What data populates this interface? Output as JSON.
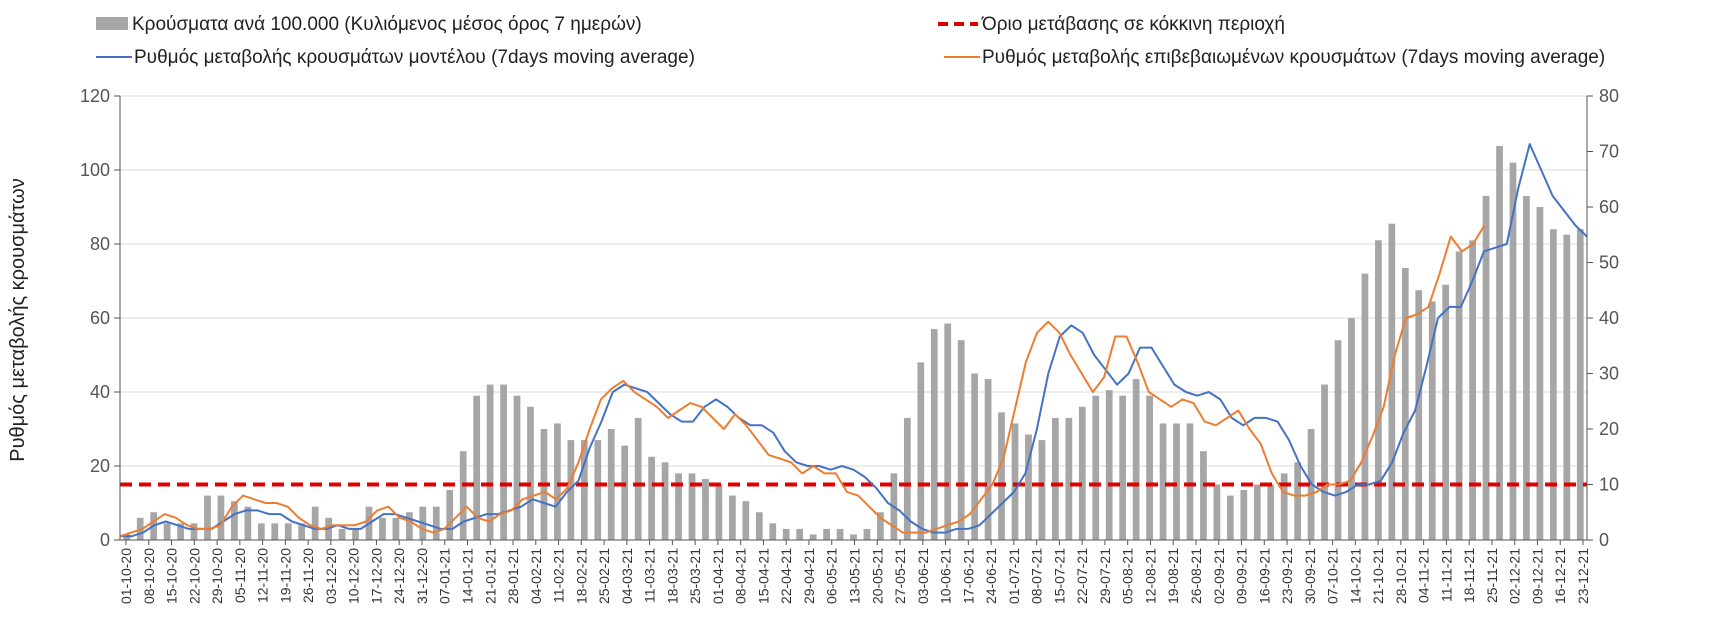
{
  "chart_data": {
    "type": "bar+line",
    "title": "",
    "ylabel": "Ρυθμός μεταβολής κρουσμάτων",
    "ylim": [
      0,
      120
    ],
    "y_ticks": [
      "0",
      "20",
      "40",
      "60",
      "80",
      "100",
      "120"
    ],
    "y2lim": [
      0,
      80
    ],
    "y2_ticks": [
      "0",
      "10",
      "20",
      "30",
      "40",
      "50",
      "60",
      "70",
      "80"
    ],
    "grid": "horizontal",
    "legend_position": "top",
    "legend": {
      "bars": "Κρούσματα ανά 100.000 (Κυλιόμενος μέσος όρος 7 ημερών)",
      "threshold": "Όριο μετάβασης σε κόκκινη περιοχή",
      "model": "Ρυθμός μεταβολής κρουσμάτων μοντέλου (7days moving average)",
      "confirmed": "Ρυθμός μεταβολής επιβεβαιωμένων κρουσμάτων (7days moving average)"
    },
    "colors": {
      "bars": "#a6a6a6",
      "threshold": "#e00000",
      "model": "#4472c4",
      "confirmed": "#ed7d31",
      "grid": "#d9d9d9",
      "axis": "#555555"
    },
    "x_labels": [
      "01-10-20",
      "08-10-20",
      "15-10-20",
      "22-10-20",
      "29-10-20",
      "05-11-20",
      "12-11-20",
      "19-11-20",
      "26-11-20",
      "03-12-20",
      "10-12-20",
      "17-12-20",
      "24-12-20",
      "31-12-20",
      "07-01-21",
      "14-01-21",
      "21-01-21",
      "28-01-21",
      "04-02-21",
      "11-02-21",
      "18-02-21",
      "25-02-21",
      "04-03-21",
      "11-03-21",
      "18-03-21",
      "25-03-21",
      "01-04-21",
      "08-04-21",
      "15-04-21",
      "22-04-21",
      "29-04-21",
      "06-05-21",
      "13-05-21",
      "20-05-21",
      "27-05-21",
      "03-06-21",
      "10-06-21",
      "17-06-21",
      "24-06-21",
      "01-07-21",
      "08-07-21",
      "15-07-21",
      "22-07-21",
      "29-07-21",
      "05-08-21",
      "12-08-21",
      "19-08-21",
      "26-08-21",
      "02-09-21",
      "09-09-21",
      "16-09-21",
      "23-09-21",
      "30-09-21",
      "07-10-21",
      "14-10-21",
      "21-10-21",
      "28-10-21",
      "04-11-21",
      "11-11-21",
      "18-11-21",
      "25-11-21",
      "02-12-21",
      "09-12-21",
      "16-12-21",
      "23-12-21"
    ],
    "threshold_value": 15,
    "bars_secondary_axis": [
      1,
      4,
      5,
      3,
      3,
      3,
      8,
      8,
      7,
      6,
      3,
      3,
      3,
      3,
      6,
      4,
      2,
      2,
      6,
      4,
      4,
      5,
      6,
      6,
      9,
      16,
      26,
      28,
      28,
      26,
      24,
      20,
      21,
      18,
      18,
      18,
      20,
      17,
      22,
      15,
      14,
      12,
      12,
      11,
      10,
      8,
      7,
      5,
      3,
      2,
      2,
      1,
      2,
      2,
      1,
      2,
      5,
      12,
      22,
      32,
      38,
      39,
      36,
      30,
      29,
      23,
      21,
      19,
      18,
      22,
      22,
      24,
      26,
      27,
      26,
      29,
      26,
      21,
      21,
      21,
      16,
      10,
      8,
      9,
      10,
      10,
      12,
      14,
      20,
      28,
      36,
      40,
      48,
      54,
      57,
      49,
      45,
      43,
      46,
      52,
      54,
      62,
      71,
      68,
      62,
      60,
      56,
      55,
      56
    ],
    "model_rate": [
      1,
      1,
      2,
      4,
      5,
      4,
      3,
      3,
      3,
      5,
      7,
      8,
      8,
      7,
      7,
      5,
      4,
      3,
      3,
      4,
      3,
      3,
      5,
      7,
      7,
      6,
      5,
      4,
      3,
      3,
      5,
      6,
      7,
      7,
      8,
      9,
      11,
      10,
      9,
      13,
      16,
      25,
      32,
      40,
      42,
      41,
      40,
      37,
      34,
      32,
      32,
      36,
      38,
      36,
      33,
      31,
      31,
      29,
      24,
      21,
      20,
      20,
      19,
      20,
      19,
      17,
      14,
      10,
      8,
      5,
      3,
      2,
      2,
      3,
      3,
      4,
      7,
      10,
      13,
      18,
      30,
      45,
      55,
      58,
      56,
      50,
      46,
      42,
      45,
      52,
      52,
      47,
      42,
      40,
      39,
      40,
      38,
      33,
      31,
      33,
      33,
      32,
      27,
      20,
      15,
      13,
      12,
      13,
      15,
      15,
      16,
      21,
      29,
      35,
      47,
      60,
      63,
      63,
      70,
      78,
      79,
      80,
      95,
      107,
      100,
      93,
      89,
      85,
      82
    ],
    "confirmed_rate": [
      1,
      2,
      3,
      5,
      7,
      6,
      4,
      3,
      3,
      4,
      9,
      12,
      11,
      10,
      10,
      9,
      6,
      4,
      3,
      4,
      4,
      4,
      5,
      8,
      9,
      6,
      5,
      3,
      2,
      3,
      6,
      9,
      6,
      5,
      7,
      8,
      11,
      12,
      13,
      11,
      14,
      21,
      30,
      38,
      41,
      43,
      40,
      38,
      36,
      33,
      35,
      37,
      36,
      33,
      30,
      34,
      31,
      27,
      23,
      22,
      21,
      18,
      20,
      18,
      18,
      13,
      12,
      9,
      6,
      4,
      2,
      2,
      2,
      3,
      4,
      5,
      7,
      11,
      15,
      22,
      35,
      48,
      56,
      59,
      56,
      50,
      45,
      40,
      44,
      55,
      55,
      48,
      40,
      38,
      36,
      38,
      37,
      32,
      31,
      33,
      35,
      30,
      26,
      18,
      13,
      12,
      12,
      13,
      15,
      15,
      16,
      21,
      28,
      36,
      50,
      60,
      61,
      63,
      72,
      82,
      78,
      80,
      85
    ]
  }
}
